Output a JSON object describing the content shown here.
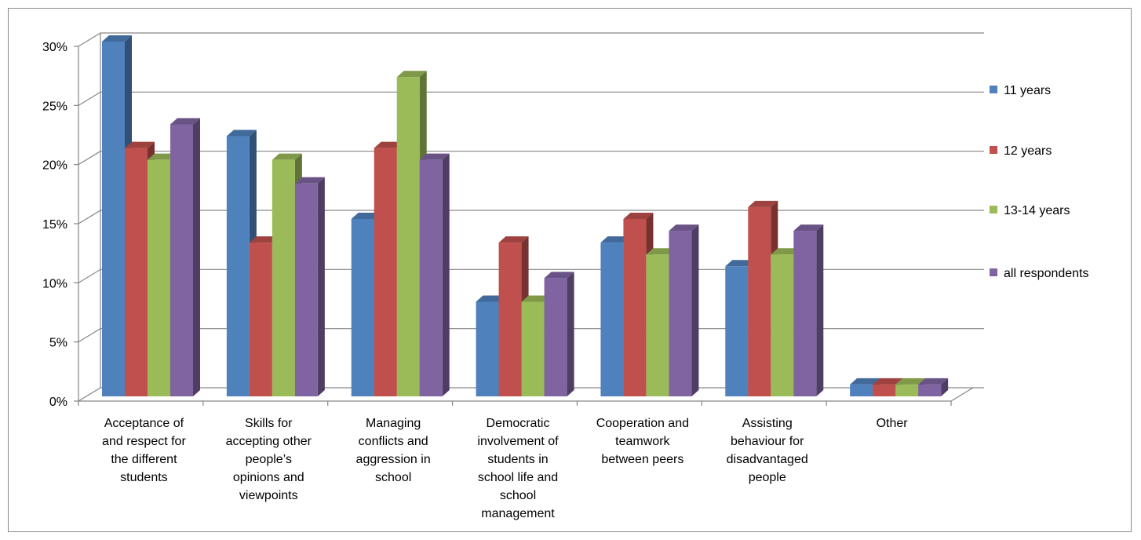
{
  "chart_data": {
    "type": "bar",
    "style": "3d-clustered-column",
    "categories": [
      [
        "Acceptance of",
        "and respect for",
        "the different",
        "students"
      ],
      [
        "Skills for",
        "accepting other",
        "people’s",
        "opinions and",
        "viewpoints"
      ],
      [
        "Managing",
        "conflicts and",
        "aggression in",
        "school"
      ],
      [
        "Democratic",
        "involvement of",
        "students in",
        "school life and",
        "school",
        "management"
      ],
      [
        "Cooperation and",
        "teamwork",
        "between peers"
      ],
      [
        "Assisting",
        "behaviour for",
        "disadvantaged",
        "people"
      ],
      [
        "Other"
      ]
    ],
    "series": [
      {
        "name": "11 years",
        "color": "#4F81BD",
        "values": [
          30,
          22,
          15,
          8,
          13,
          11,
          1
        ]
      },
      {
        "name": "12 years",
        "color": "#C0504D",
        "values": [
          21,
          13,
          21,
          13,
          15,
          16,
          1
        ]
      },
      {
        "name": "13-14 years",
        "color": "#9BBB59",
        "values": [
          20,
          20,
          27,
          8,
          12,
          12,
          1
        ]
      },
      {
        "name": "all respondents",
        "color": "#8064A2",
        "values": [
          23,
          18,
          20,
          10,
          14,
          14,
          1
        ]
      }
    ],
    "y_ticks": [
      "0%",
      "5%",
      "10%",
      "15%",
      "20%",
      "25%",
      "30%"
    ],
    "ylim": [
      0,
      30
    ],
    "ytick_step": 5,
    "grid": true,
    "legend_position": "right"
  }
}
